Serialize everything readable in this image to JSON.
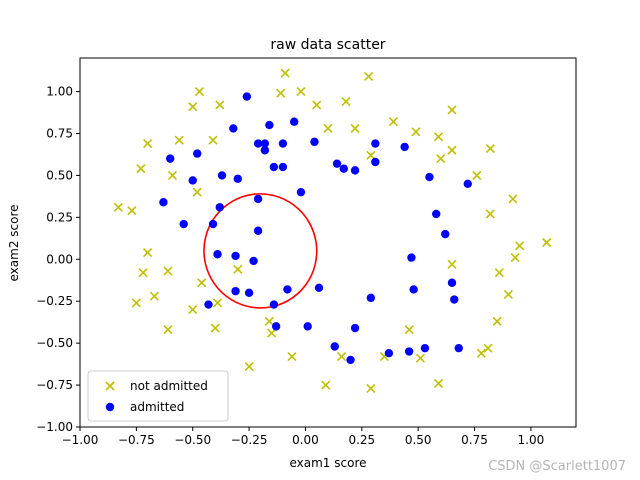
{
  "chart_data": {
    "type": "scatter",
    "title": "raw data scatter",
    "xlabel": "exam1 score",
    "ylabel": "exam2 score",
    "xlim": [
      -1.0,
      1.2
    ],
    "ylim": [
      -1.0,
      1.2
    ],
    "xticks": [
      -1.0,
      -0.75,
      -0.5,
      -0.25,
      0.0,
      0.25,
      0.5,
      0.75,
      1.0
    ],
    "yticks": [
      -1.0,
      -0.75,
      -0.5,
      -0.25,
      0.0,
      0.25,
      0.5,
      0.75,
      1.0
    ],
    "xtick_labels": [
      "−1.00",
      "−0.75",
      "−0.50",
      "−0.25",
      "0.00",
      "0.25",
      "0.50",
      "0.75",
      "1.00"
    ],
    "ytick_labels": [
      "−1.00",
      "−0.75",
      "−0.50",
      "−0.25",
      "0.00",
      "0.25",
      "0.50",
      "0.75",
      "1.00"
    ],
    "grid": false,
    "legend_position": "lower-left",
    "series": [
      {
        "name": "not admitted",
        "marker": "x",
        "color": "#bfbf00",
        "points": [
          [
            -0.47,
            1.0
          ],
          [
            -0.5,
            0.91
          ],
          [
            -0.38,
            0.92
          ],
          [
            -0.09,
            1.11
          ],
          [
            -0.11,
            0.99
          ],
          [
            -0.02,
            1.0
          ],
          [
            0.05,
            0.92
          ],
          [
            0.18,
            0.94
          ],
          [
            0.28,
            1.09
          ],
          [
            -0.41,
            0.71
          ],
          [
            -0.56,
            0.71
          ],
          [
            -0.7,
            0.69
          ],
          [
            -0.73,
            0.54
          ],
          [
            -0.59,
            0.5
          ],
          [
            -0.48,
            0.4
          ],
          [
            0.1,
            0.78
          ],
          [
            0.22,
            0.78
          ],
          [
            0.39,
            0.82
          ],
          [
            0.49,
            0.76
          ],
          [
            0.59,
            0.73
          ],
          [
            0.65,
            0.89
          ],
          [
            0.6,
            0.6
          ],
          [
            0.65,
            0.65
          ],
          [
            0.82,
            0.66
          ],
          [
            0.76,
            0.5
          ],
          [
            0.29,
            0.62
          ],
          [
            -0.83,
            0.31
          ],
          [
            -0.77,
            0.29
          ],
          [
            -0.7,
            0.04
          ],
          [
            -0.72,
            -0.08
          ],
          [
            -0.61,
            -0.07
          ],
          [
            -0.75,
            -0.26
          ],
          [
            -0.67,
            -0.22
          ],
          [
            -0.61,
            -0.42
          ],
          [
            -0.5,
            -0.3
          ],
          [
            -0.46,
            -0.14
          ],
          [
            -0.4,
            -0.41
          ],
          [
            -0.39,
            -0.26
          ],
          [
            -0.3,
            -0.06
          ],
          [
            -0.25,
            -0.64
          ],
          [
            -0.16,
            -0.37
          ],
          [
            -0.15,
            -0.44
          ],
          [
            -0.06,
            -0.58
          ],
          [
            0.09,
            -0.75
          ],
          [
            0.16,
            -0.58
          ],
          [
            0.29,
            -0.77
          ],
          [
            0.35,
            -0.58
          ],
          [
            0.46,
            -0.42
          ],
          [
            0.51,
            -0.59
          ],
          [
            0.59,
            -0.74
          ],
          [
            0.65,
            -0.03
          ],
          [
            0.82,
            0.27
          ],
          [
            0.92,
            0.36
          ],
          [
            0.95,
            0.08
          ],
          [
            0.93,
            0.01
          ],
          [
            0.86,
            -0.08
          ],
          [
            0.9,
            -0.21
          ],
          [
            0.85,
            -0.37
          ],
          [
            0.81,
            -0.53
          ],
          [
            0.78,
            -0.56
          ],
          [
            1.07,
            0.1
          ]
        ]
      },
      {
        "name": "admitted",
        "marker": "o",
        "color": "#0000ff",
        "points": [
          [
            -0.26,
            0.97
          ],
          [
            -0.32,
            0.78
          ],
          [
            -0.16,
            0.8
          ],
          [
            -0.05,
            0.82
          ],
          [
            -0.21,
            0.69
          ],
          [
            -0.18,
            0.69
          ],
          [
            -0.18,
            0.65
          ],
          [
            -0.1,
            0.69
          ],
          [
            0.04,
            0.7
          ],
          [
            0.14,
            0.57
          ],
          [
            0.17,
            0.54
          ],
          [
            0.22,
            0.53
          ],
          [
            0.31,
            0.58
          ],
          [
            0.31,
            0.69
          ],
          [
            0.44,
            0.67
          ],
          [
            0.55,
            0.49
          ],
          [
            0.72,
            0.45
          ],
          [
            -0.6,
            0.6
          ],
          [
            -0.48,
            0.63
          ],
          [
            -0.5,
            0.47
          ],
          [
            -0.37,
            0.5
          ],
          [
            -0.3,
            0.48
          ],
          [
            -0.14,
            0.55
          ],
          [
            -0.1,
            0.55
          ],
          [
            -0.63,
            0.34
          ],
          [
            -0.54,
            0.21
          ],
          [
            -0.38,
            0.31
          ],
          [
            -0.21,
            0.36
          ],
          [
            -0.02,
            0.4
          ],
          [
            -0.41,
            0.21
          ],
          [
            -0.21,
            0.17
          ],
          [
            -0.39,
            0.03
          ],
          [
            -0.31,
            0.02
          ],
          [
            -0.23,
            -0.01
          ],
          [
            -0.31,
            -0.19
          ],
          [
            -0.25,
            -0.2
          ],
          [
            -0.08,
            -0.18
          ],
          [
            0.06,
            -0.17
          ],
          [
            -0.14,
            -0.27
          ],
          [
            -0.43,
            -0.27
          ],
          [
            -0.13,
            -0.4
          ],
          [
            0.01,
            -0.4
          ],
          [
            0.13,
            -0.52
          ],
          [
            0.2,
            -0.6
          ],
          [
            0.22,
            -0.41
          ],
          [
            0.29,
            -0.23
          ],
          [
            0.37,
            -0.56
          ],
          [
            0.46,
            -0.55
          ],
          [
            0.53,
            -0.53
          ],
          [
            0.47,
            0.01
          ],
          [
            0.48,
            -0.18
          ],
          [
            0.58,
            0.27
          ],
          [
            0.62,
            0.15
          ],
          [
            0.65,
            -0.14
          ],
          [
            0.66,
            -0.24
          ],
          [
            0.68,
            -0.53
          ]
        ]
      }
    ],
    "decision_boundary": {
      "color": "#ff0000",
      "shape": "closed curve",
      "center": [
        -0.2,
        0.05
      ],
      "semi_axis_x": 0.25,
      "semi_axis_y": 0.34,
      "rotation_deg": -8
    }
  },
  "watermark": "CSDN @Scarlett1007"
}
